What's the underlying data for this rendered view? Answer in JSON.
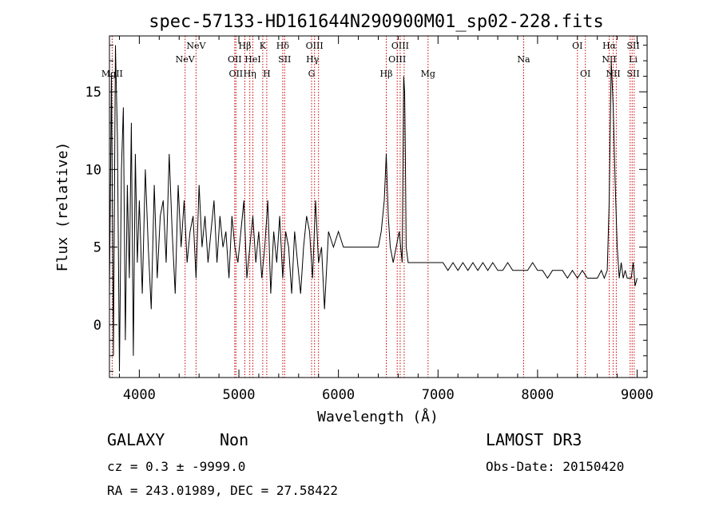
{
  "chart_data": {
    "type": "line",
    "title": "spec-57133-HD161644N290900M01_sp02-228.fits",
    "xlabel": "Wavelength (Å)",
    "ylabel": "Flux (relative)",
    "xlim": [
      3700,
      9100
    ],
    "ylim": [
      -3.4,
      18.6
    ],
    "x_ticks": [
      4000,
      5000,
      6000,
      7000,
      8000,
      9000
    ],
    "y_ticks": [
      0,
      5,
      10,
      15
    ],
    "grid": false,
    "series": [
      {
        "name": "flux",
        "x": [
          3700,
          3720,
          3740,
          3760,
          3780,
          3800,
          3820,
          3840,
          3860,
          3880,
          3900,
          3920,
          3940,
          3960,
          3980,
          4000,
          4030,
          4060,
          4090,
          4120,
          4150,
          4180,
          4210,
          4240,
          4270,
          4300,
          4330,
          4360,
          4390,
          4420,
          4450,
          4480,
          4510,
          4540,
          4570,
          4600,
          4630,
          4660,
          4690,
          4720,
          4750,
          4780,
          4810,
          4840,
          4870,
          4900,
          4930,
          4960,
          4990,
          5020,
          5050,
          5080,
          5110,
          5140,
          5170,
          5200,
          5230,
          5260,
          5290,
          5320,
          5350,
          5380,
          5410,
          5440,
          5470,
          5500,
          5530,
          5560,
          5590,
          5620,
          5650,
          5680,
          5710,
          5740,
          5770,
          5800,
          5830,
          5860,
          5900,
          5950,
          6000,
          6050,
          6100,
          6150,
          6200,
          6250,
          6300,
          6350,
          6400,
          6430,
          6460,
          6480,
          6490,
          6500,
          6520,
          6550,
          6580,
          6610,
          6640,
          6655,
          6665,
          6672,
          6680,
          6700,
          6750,
          6800,
          6850,
          6900,
          6950,
          7000,
          7050,
          7100,
          7150,
          7200,
          7250,
          7300,
          7350,
          7400,
          7450,
          7500,
          7550,
          7600,
          7650,
          7700,
          7750,
          7800,
          7850,
          7900,
          7950,
          8000,
          8050,
          8100,
          8150,
          8200,
          8250,
          8300,
          8350,
          8400,
          8450,
          8500,
          8550,
          8600,
          8640,
          8670,
          8700,
          8720,
          8740,
          8760,
          8780,
          8800,
          8820,
          8840,
          8860,
          8880,
          8900,
          8920,
          8940,
          8960,
          8980,
          9000
        ],
        "y": [
          2,
          16,
          -2,
          18,
          12,
          -3,
          10,
          14,
          -1,
          9,
          3,
          13,
          -2,
          11,
          4,
          8,
          2,
          10,
          5,
          1,
          9,
          3,
          7,
          8,
          4,
          11,
          6,
          2,
          9,
          5,
          8,
          4,
          6,
          7,
          3,
          9,
          5,
          7,
          4,
          6,
          8,
          4,
          7,
          5,
          6,
          3,
          7,
          5,
          4,
          6,
          8,
          3,
          5,
          7,
          4,
          6,
          3,
          5,
          8,
          2,
          6,
          4,
          7,
          3,
          6,
          5,
          2,
          6,
          4,
          2,
          5,
          7,
          6,
          3,
          8,
          4,
          5,
          1,
          6,
          5,
          6,
          5,
          5,
          5,
          5,
          5,
          5,
          5,
          5,
          6,
          8,
          11,
          9,
          7,
          5,
          4,
          5,
          6,
          4,
          16,
          15,
          11,
          5,
          4,
          4,
          4,
          4,
          4,
          4,
          4,
          4,
          3.5,
          4,
          3.5,
          4,
          3.5,
          4,
          3.5,
          4,
          3.5,
          4,
          3.5,
          3.5,
          4,
          3.5,
          3.5,
          3.5,
          3.5,
          4,
          3.5,
          3.5,
          3,
          3.5,
          3.5,
          3.5,
          3,
          3.5,
          3,
          3.5,
          3,
          3,
          3,
          3.5,
          3,
          3.5,
          8,
          17,
          14,
          9,
          5,
          3,
          4,
          3,
          3.5,
          3,
          3,
          3,
          4,
          2.5,
          3
        ]
      }
    ],
    "annotations": [
      {
        "wl": 3727,
        "row": 3,
        "text": "MgII"
      },
      {
        "wl": 4460,
        "row": 2,
        "text": "NeV"
      },
      {
        "wl": 4570,
        "row": 1,
        "text": "NeV"
      },
      {
        "wl": 4958,
        "row": 2,
        "text": "OII"
      },
      {
        "wl": 4970,
        "row": 3,
        "text": "OII"
      },
      {
        "wl": 5060,
        "row": 1,
        "text": "Hβ"
      },
      {
        "wl": 5110,
        "row": 3,
        "text": "Hη"
      },
      {
        "wl": 5140,
        "row": 2,
        "text": "HeI"
      },
      {
        "wl": 5240,
        "row": 1,
        "text": "K"
      },
      {
        "wl": 5280,
        "row": 3,
        "text": "H"
      },
      {
        "wl": 5440,
        "row": 1,
        "text": "Hδ"
      },
      {
        "wl": 5460,
        "row": 2,
        "text": "SII"
      },
      {
        "wl": 5760,
        "row": 1,
        "text": "OIII"
      },
      {
        "wl": 5740,
        "row": 2,
        "text": "Hγ"
      },
      {
        "wl": 5730,
        "row": 3,
        "text": "G"
      },
      {
        "wl": 6480,
        "row": 3,
        "text": "Hβ"
      },
      {
        "wl": 6620,
        "row": 1,
        "text": "OIII"
      },
      {
        "wl": 6590,
        "row": 2,
        "text": "OIII"
      },
      {
        "wl": 6900,
        "row": 3,
        "text": "Mg"
      },
      {
        "wl": 7860,
        "row": 2,
        "text": "Na"
      },
      {
        "wl": 8400,
        "row": 1,
        "text": "OI"
      },
      {
        "wl": 8480,
        "row": 3,
        "text": "OI"
      },
      {
        "wl": 8720,
        "row": 1,
        "text": "Hα"
      },
      {
        "wl": 8720,
        "row": 2,
        "text": "NII"
      },
      {
        "wl": 8760,
        "row": 3,
        "text": "NII"
      },
      {
        "wl": 8960,
        "row": 1,
        "text": "SII"
      },
      {
        "wl": 8960,
        "row": 2,
        "text": "Li"
      },
      {
        "wl": 8960,
        "row": 3,
        "text": "SII"
      }
    ],
    "line_positions": [
      3727,
      4460,
      4570,
      4958,
      4970,
      5060,
      5110,
      5140,
      5240,
      5280,
      5440,
      5460,
      5730,
      5760,
      5800,
      6480,
      6590,
      6620,
      6660,
      6900,
      7860,
      8400,
      8480,
      8720,
      8760,
      8790,
      8930,
      8950,
      8970
    ]
  },
  "info": {
    "class": "GALAXY",
    "subclass": "Non",
    "cz": "cz = 0.3 ± -9999.0",
    "radec": "RA = 243.01989, DEC =  27.58422",
    "survey": "LAMOST DR3",
    "obsdate": "Obs-Date: 20150420"
  },
  "colors": {
    "line": "#000000",
    "marker": "#cc0000"
  }
}
